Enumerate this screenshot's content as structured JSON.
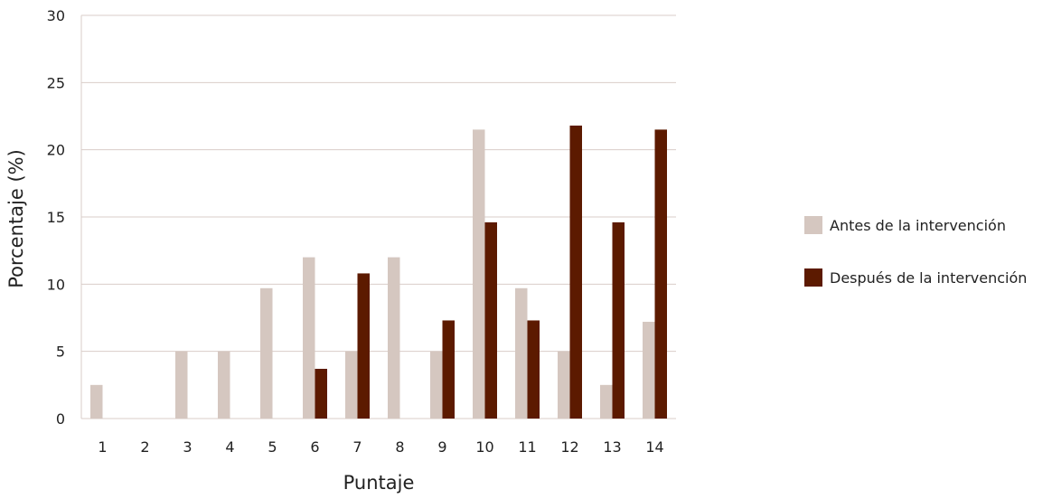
{
  "chart_data": {
    "type": "bar",
    "title": "",
    "xlabel": "Puntaje",
    "ylabel": "Porcentaje (%)",
    "ylim": [
      0,
      30
    ],
    "yticks": [
      0,
      5,
      10,
      15,
      20,
      25,
      30
    ],
    "grid": true,
    "legend_position": "right",
    "categories": [
      "1",
      "2",
      "3",
      "4",
      "5",
      "6",
      "7",
      "8",
      "9",
      "10",
      "11",
      "12",
      "13",
      "14"
    ],
    "series": [
      {
        "name": "Antes de la intervención",
        "color": "#d5c7c0",
        "values": [
          2.5,
          0,
          5,
          5,
          9.7,
          12,
          5,
          12,
          5,
          21.5,
          9.7,
          5,
          2.5,
          7.2
        ]
      },
      {
        "name": "Después de la intervención",
        "color": "#5c1a00",
        "values": [
          0,
          0,
          0,
          0,
          0,
          3.7,
          10.8,
          0,
          7.3,
          14.6,
          7.3,
          21.8,
          14.6,
          21.5
        ]
      }
    ]
  }
}
